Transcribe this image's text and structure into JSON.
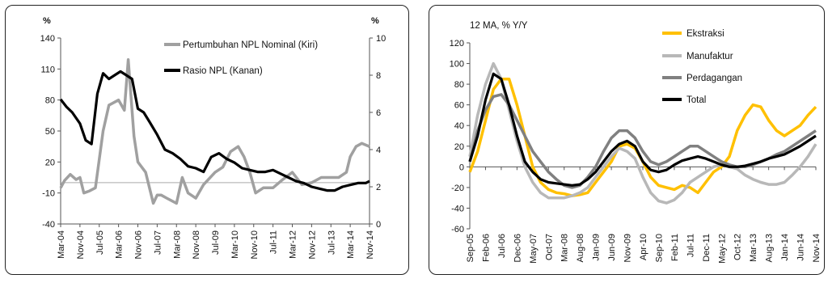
{
  "chart_data": [
    {
      "type": "line",
      "left_unit": "%",
      "right_unit": "%",
      "y_left_lim": [
        -40,
        140
      ],
      "y_left_ticks": [
        140,
        110,
        80,
        50,
        20,
        -10,
        -40
      ],
      "y_right_lim": [
        0,
        10
      ],
      "y_right_ticks": [
        10,
        8,
        6,
        4,
        2,
        0
      ],
      "x_tick_labels": [
        "Mar-04",
        "Nov-04",
        "Jul-05",
        "Mar-06",
        "Nov-06",
        "Jul-07",
        "Mar-08",
        "Nov-08",
        "Jul-09",
        "Mar-10",
        "Nov-10",
        "Jul-11",
        "Mar-12",
        "Nov-12",
        "Jul-13",
        "Mar-14",
        "Nov-14"
      ],
      "legend_placement": "top-right",
      "series": [
        {
          "name": "Pertumbuhan NPL Nominal (Kiri)",
          "axis": "left",
          "color": "#a0a0a0",
          "x": [
            0,
            0.2,
            0.5,
            0.8,
            1.0,
            1.2,
            1.5,
            1.8,
            2.2,
            2.5,
            3.0,
            3.3,
            3.5,
            3.8,
            4.0,
            4.4,
            4.8,
            5.0,
            5.2,
            5.5,
            6.0,
            6.3,
            6.6,
            7.0,
            7.4,
            8.0,
            8.4,
            8.8,
            9.2,
            9.5,
            9.8,
            10.1,
            10.5,
            11.0,
            11.5,
            12.0,
            12.5,
            13.0,
            13.5,
            14.0,
            14.4,
            14.8,
            15.0,
            15.3,
            15.6,
            16.0
          ],
          "y": [
            -5,
            2,
            8,
            3,
            5,
            -10,
            -8,
            -5,
            50,
            75,
            80,
            70,
            119,
            45,
            20,
            10,
            -20,
            -12,
            -12,
            -15,
            -20,
            5,
            -10,
            -15,
            -2,
            10,
            15,
            30,
            35,
            25,
            10,
            -10,
            -5,
            -5,
            3,
            10,
            -2,
            0,
            5,
            5,
            5,
            10,
            25,
            35,
            38,
            35
          ]
        },
        {
          "name": "Rasio NPL (Kanan)",
          "axis": "right",
          "color": "#000000",
          "x": [
            0,
            0.3,
            0.6,
            1.0,
            1.3,
            1.6,
            1.9,
            2.2,
            2.5,
            2.8,
            3.1,
            3.4,
            3.7,
            4.0,
            4.3,
            4.6,
            5.0,
            5.4,
            5.8,
            6.2,
            6.6,
            7.0,
            7.4,
            7.8,
            8.2,
            8.6,
            9.0,
            9.4,
            9.8,
            10.2,
            10.6,
            11.0,
            11.4,
            11.8,
            12.2,
            12.6,
            13.0,
            13.4,
            13.8,
            14.2,
            14.6,
            15.0,
            15.4,
            15.8,
            16.0
          ],
          "y": [
            6.7,
            6.3,
            6.0,
            5.4,
            4.5,
            4.3,
            7.0,
            8.1,
            7.8,
            8.0,
            8.2,
            8.0,
            7.8,
            6.2,
            6.0,
            5.5,
            4.8,
            4.0,
            3.8,
            3.5,
            3.1,
            3.0,
            2.8,
            3.6,
            3.8,
            3.5,
            3.3,
            3.0,
            2.9,
            2.8,
            2.8,
            2.9,
            2.7,
            2.5,
            2.3,
            2.2,
            2.0,
            1.9,
            1.8,
            1.8,
            2.0,
            2.1,
            2.2,
            2.2,
            2.3
          ]
        }
      ]
    },
    {
      "type": "line",
      "title": "12 MA, % Y/Y",
      "ylim": [
        -60,
        120
      ],
      "y_ticks": [
        120,
        100,
        80,
        60,
        40,
        20,
        0,
        -20,
        -40,
        -60
      ],
      "x_tick_labels": [
        "Sep-05",
        "Feb-06",
        "Jul-06",
        "Dec-06",
        "May-07",
        "Oct-07",
        "Mar-08",
        "Aug-08",
        "Jan-09",
        "Jun-09",
        "Nov-09",
        "Apr-10",
        "Sep-10",
        "Feb-11",
        "Jul-11",
        "Dec-11",
        "May-12",
        "Oct-12",
        "Mar-13",
        "Aug-13",
        "Jan-14",
        "Jun-14",
        "Nov-14"
      ],
      "legend_placement": "top-right",
      "series": [
        {
          "name": "Ekstraksi",
          "color": "#ffc000",
          "x": [
            0,
            0.5,
            1.0,
            1.5,
            2.0,
            2.5,
            3.0,
            3.5,
            4.0,
            4.5,
            5.0,
            5.5,
            6.0,
            6.5,
            7.0,
            7.5,
            8.0,
            8.5,
            9.0,
            9.5,
            10.0,
            10.5,
            11.0,
            11.5,
            12.0,
            12.5,
            13.0,
            13.5,
            14.0,
            14.5,
            15.0,
            15.5,
            16.0,
            16.5,
            17.0,
            17.5,
            18.0,
            18.5,
            19.0,
            19.5,
            20.0,
            20.5,
            21.0,
            21.5,
            22.0
          ],
          "y": [
            -5,
            15,
            45,
            75,
            85,
            85,
            60,
            30,
            0,
            -15,
            -22,
            -25,
            -26,
            -28,
            -27,
            -25,
            -15,
            -5,
            5,
            20,
            22,
            18,
            5,
            -10,
            -18,
            -20,
            -22,
            -18,
            -20,
            -25,
            -15,
            -5,
            0,
            10,
            35,
            50,
            60,
            58,
            45,
            35,
            30,
            35,
            40,
            50,
            58
          ]
        },
        {
          "name": "Manufaktur",
          "color": "#b8b8b8",
          "x": [
            0,
            0.5,
            1.0,
            1.5,
            2.0,
            2.5,
            3.0,
            3.5,
            4.0,
            4.5,
            5.0,
            5.5,
            6.0,
            6.5,
            7.0,
            7.5,
            8.0,
            8.5,
            9.0,
            9.5,
            10.0,
            10.5,
            11.0,
            11.5,
            12.0,
            12.5,
            13.0,
            13.5,
            14.0,
            14.5,
            15.0,
            15.5,
            16.0,
            16.5,
            17.0,
            17.5,
            18.0,
            18.5,
            19.0,
            19.5,
            20.0,
            20.5,
            21.0,
            21.5,
            22.0
          ],
          "y": [
            10,
            50,
            80,
            100,
            85,
            55,
            25,
            0,
            -15,
            -25,
            -30,
            -30,
            -30,
            -28,
            -25,
            -20,
            -10,
            0,
            10,
            18,
            15,
            8,
            -10,
            -25,
            -33,
            -35,
            -32,
            -25,
            -15,
            -10,
            -5,
            0,
            2,
            0,
            -2,
            -8,
            -12,
            -15,
            -17,
            -17,
            -15,
            -8,
            0,
            10,
            22
          ]
        },
        {
          "name": "Perdagangan",
          "color": "#808080",
          "x": [
            0,
            0.5,
            1.0,
            1.5,
            2.0,
            2.5,
            3.0,
            3.5,
            4.0,
            4.5,
            5.0,
            5.5,
            6.0,
            6.5,
            7.0,
            7.5,
            8.0,
            8.5,
            9.0,
            9.5,
            10.0,
            10.5,
            11.0,
            11.5,
            12.0,
            12.5,
            13.0,
            13.5,
            14.0,
            14.5,
            15.0,
            15.5,
            16.0,
            16.5,
            17.0,
            17.5,
            18.0,
            18.5,
            19.0,
            19.5,
            20.0,
            20.5,
            21.0,
            21.5,
            22.0
          ],
          "y": [
            5,
            35,
            55,
            68,
            70,
            60,
            45,
            30,
            15,
            5,
            -5,
            -12,
            -18,
            -20,
            -18,
            -10,
            0,
            15,
            28,
            35,
            35,
            28,
            15,
            5,
            2,
            5,
            10,
            15,
            20,
            20,
            15,
            10,
            5,
            2,
            0,
            0,
            2,
            5,
            8,
            12,
            15,
            20,
            25,
            30,
            35
          ]
        },
        {
          "name": "Total",
          "color": "#000000",
          "x": [
            0,
            0.5,
            1.0,
            1.5,
            2.0,
            2.5,
            3.0,
            3.5,
            4.0,
            4.5,
            5.0,
            5.5,
            6.0,
            6.5,
            7.0,
            7.5,
            8.0,
            8.5,
            9.0,
            9.5,
            10.0,
            10.5,
            11.0,
            11.5,
            12.0,
            12.5,
            13.0,
            13.5,
            14.0,
            14.5,
            15.0,
            15.5,
            16.0,
            16.5,
            17.0,
            17.5,
            18.0,
            18.5,
            19.0,
            19.5,
            20.0,
            20.5,
            21.0,
            21.5,
            22.0
          ],
          "y": [
            5,
            30,
            65,
            90,
            85,
            60,
            30,
            5,
            -5,
            -12,
            -15,
            -16,
            -17,
            -18,
            -17,
            -12,
            -5,
            5,
            15,
            22,
            25,
            20,
            5,
            -3,
            -5,
            -3,
            2,
            6,
            8,
            10,
            8,
            5,
            2,
            0,
            0,
            1,
            3,
            5,
            8,
            10,
            12,
            16,
            20,
            25,
            30
          ]
        }
      ]
    }
  ]
}
